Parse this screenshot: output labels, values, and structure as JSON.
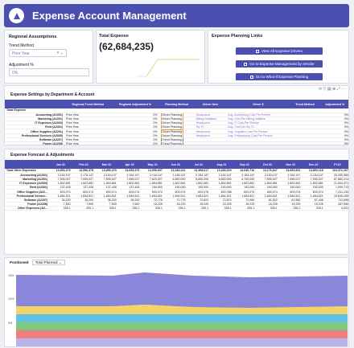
{
  "header": {
    "title": "Expense Account Management"
  },
  "assumptions": {
    "title": "Regional Assumptions",
    "trend_label": "Trend Method",
    "trend_value": "Prior Year",
    "adj_label": "Adjustment %",
    "adj_value": "0%"
  },
  "total": {
    "title": "Total Expense",
    "value": "(62,684,235)"
  },
  "links": {
    "title": "Expense Planning Links",
    "items": [
      "View All Expense Drivers",
      "Go to Expense Management by Vendor",
      "Go to What-if Expense Planning"
    ]
  },
  "settings": {
    "title": "Expense Settings by Department & Account",
    "columns": [
      "",
      "Regional Trend Method",
      "Regional Adjustment %",
      "Planning Method",
      "Driver Item",
      "Driver Ⅱ",
      "Trend Method",
      "Adjustment %"
    ],
    "rows": [
      [
        "Total Expense",
        "",
        "",
        "",
        "",
        "",
        "",
        ""
      ],
      [
        "Accounting (A1001)",
        "Prior Year",
        "0%",
        "Driver Planning",
        "Headcount",
        "Avg. Accounting Cost Per Person",
        "",
        "0%"
      ],
      [
        "Marketing (A1001)",
        "Prior Year",
        "0%",
        "Driver Planning",
        "Billing Initiatives",
        "Avg. Cost Per Billing Initiative",
        "",
        "0%"
      ],
      [
        "IT Expenses (A2003)",
        "Prior Year",
        "0%",
        "Driver Planning",
        "Headcount",
        "Avg. IT Cost Per Person",
        "",
        "0%"
      ],
      [
        "Rent (A2301)",
        "Prior Year",
        "0%",
        "Driver Planning",
        "Sq. Ft.",
        "Avg. Cost per Sq. Ft.",
        "",
        "0%"
      ],
      [
        "Office Supplies (A2201)",
        "Prior Year",
        "0%",
        "Driver Planning",
        "Headcount",
        "Avg. Supplies Cost Per Person",
        "",
        "0%"
      ],
      [
        "Professional Services (A2005)",
        "Prior Year",
        "0%",
        "Driver Planning",
        "Headcount",
        "Avg. Professional Cost Per Person",
        "",
        "0%"
      ],
      [
        "Software (A2207)",
        "Prior Year",
        "0%",
        "Trend Planning",
        "",
        "",
        "",
        "0%"
      ],
      [
        "Power (A2208)",
        "Prior Year",
        "0%",
        "Trend Planning",
        "",
        "",
        "",
        "0%"
      ],
      [
        "Other Expenses (A2201)",
        "Prior Year",
        "0%",
        "Driver Planning",
        "Sales",
        "Headcount",
        "Trailing 6",
        "0%"
      ]
    ]
  },
  "forecast": {
    "title": "Expense Forecast & Adjustments",
    "columns": [
      "",
      "Jan 22",
      "Feb 22",
      "Mar 22",
      "Apr 22",
      "May 22",
      "Jun 22",
      "Jul 22",
      "Aug 22",
      "Sep 22",
      "Oct 22",
      "Nov 22",
      "Dec 22",
      "FY22"
    ],
    "rows": [
      [
        "Total Other Expenses",
        "13,850,379",
        "13,556,375",
        "13,850,379",
        "13,835,379",
        "14,059,937",
        "13,283,221",
        "13,398,617",
        "13,283,319",
        "14,040,716",
        "13,176,847",
        "13,833,902",
        "13,800,118",
        "164,372,207"
      ],
      [
        "Accounting (A1001)",
        "2,154,147",
        "2,176,147",
        "2,154,147",
        "2,154,147",
        "2,134,147",
        "2,136,147",
        "2,154,147",
        "2,154,147",
        "2,154,147",
        "2,154,147",
        "2,154,147",
        "2,154,147",
        "25,250,969"
      ],
      [
        "Marketing (A1001)",
        "7,595,027",
        "7,595,027",
        "7,595,027",
        "7,595,027",
        "7,620,027",
        "6,850,000",
        "6,850,000",
        "6,850,000",
        "6,790,000",
        "7,595,027",
        "7,595,027",
        "7,595,027",
        "87,882,214"
      ],
      [
        "IT Expenses (A2003)",
        "1,802,681",
        "1,802,681",
        "1,802,681",
        "1,802,681",
        "1,804,681",
        "1,802,681",
        "1,802,681",
        "1,802,681",
        "1,802,681",
        "1,802,681",
        "1,802,681",
        "1,802,681",
        "21,634,371"
      ],
      [
        "Rent (A2301)",
        "137,428",
        "137,428",
        "137,428",
        "137,428",
        "190,000",
        "190,000",
        "190,000",
        "190,000",
        "190,000",
        "190,000",
        "190,000",
        "190,000",
        "1,999,713"
      ],
      [
        "Office Supplies (A22...",
        "603,074",
        "603,074",
        "603,074",
        "603,074",
        "603,074",
        "603,074",
        "603,076",
        "603,788",
        "603,074",
        "603,074",
        "603,074",
        "603,074",
        "7,241,130"
      ],
      [
        "Professional Service...",
        "1,654,521",
        "1,654,521",
        "1,654,521",
        "1,654,521",
        "1,654,521",
        "1,654,521",
        "1,654,521",
        "1,654,521",
        "1,654,521",
        "1,654,521",
        "1,654,521",
        "1,654,521",
        "19,845,295"
      ],
      [
        "Software (A2207)",
        "36,200",
        "36,200",
        "36,200",
        "36,200",
        "72,776",
        "72,776",
        "72,822",
        "72,874",
        "72,950",
        "61,002",
        "61,580",
        "67,446",
        "711,698"
      ],
      [
        "Power (A2208)",
        "7,500",
        "7,500",
        "7,500",
        "7,500",
        "15,225",
        "15,225",
        "15,225",
        "15,225",
        "15,225",
        "15,225",
        "15,225",
        "15,225",
        "157,590"
      ],
      [
        "Other Expenses (A2...",
        "335.1",
        "335.1",
        "335.1",
        "335.1",
        "335.1",
        "335.1",
        "335.1",
        "335.1",
        "335.1",
        "335.1",
        "335.1",
        "335.1",
        "4,021"
      ]
    ]
  },
  "chart": {
    "filter_label": "Positioned",
    "filter_value": "Total Planned",
    "y_ticks": [
      "15M",
      "10M",
      "5M"
    ],
    "colors": [
      "#8a86d9",
      "#f3d46a",
      "#62c1e6",
      "#ef7f7f",
      "#7fc97f",
      "#b8b3e8"
    ]
  }
}
